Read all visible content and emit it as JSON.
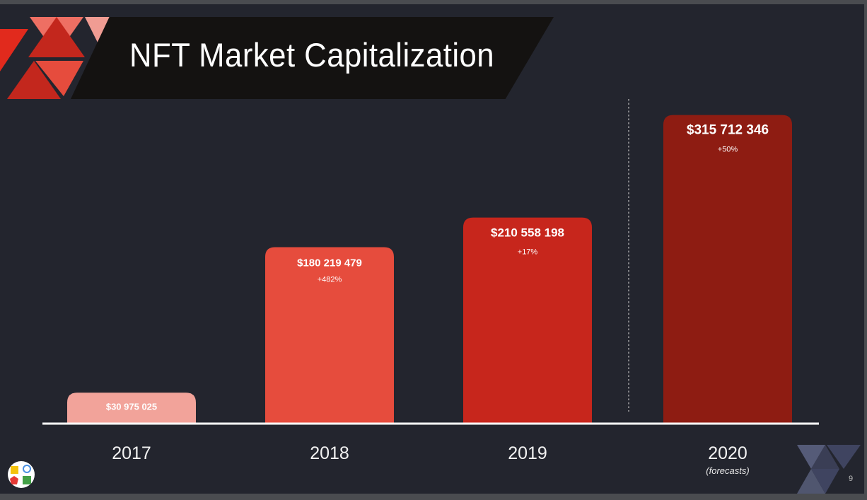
{
  "slide": {
    "title": "NFT Market Capitalization",
    "page_number": "9",
    "colors": {
      "background": "#23252e",
      "title_band": "#141211",
      "baseline": "#ffffff"
    }
  },
  "chart_data": {
    "type": "bar",
    "title": "NFT Market Capitalization",
    "categories": [
      "2017",
      "2018",
      "2019",
      "2020"
    ],
    "category_notes": [
      "",
      "",
      "",
      "(forecasts)"
    ],
    "values": [
      30975025,
      180219479,
      210558198,
      315712346
    ],
    "value_labels": [
      "$30 975 025",
      "$180 219 479",
      "$210 558 198",
      "$315 712 346"
    ],
    "change_labels": [
      "",
      "+482%",
      "+17%",
      "+50%"
    ],
    "bar_colors": [
      "#f2a39a",
      "#e64c3d",
      "#c7261c",
      "#8e1c12"
    ],
    "ylim": [
      0,
      335000000
    ],
    "xlabel": "",
    "ylabel": "",
    "grid": false,
    "legend": "none",
    "forecast_divider": "between 2019 and 2020"
  }
}
